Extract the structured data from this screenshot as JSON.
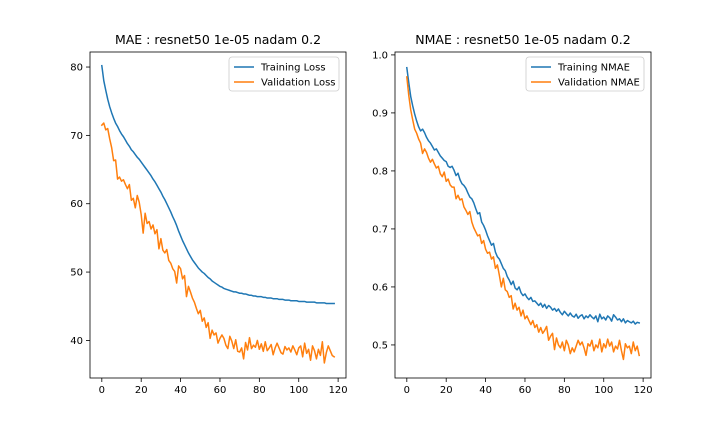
{
  "chart_data": [
    {
      "type": "line",
      "title": "MAE : resnet50 1e-05 nadam 0.2",
      "xlabel": "",
      "ylabel": "",
      "xlim": [
        -6,
        124
      ],
      "ylim": [
        34.5,
        82.2
      ],
      "xticks": [
        0,
        20,
        40,
        60,
        80,
        100,
        120
      ],
      "yticks": [
        40,
        50,
        60,
        70,
        80
      ],
      "legend": "top-right",
      "grid": false,
      "series": [
        {
          "name": "Training Loss",
          "color": "#1f77b4",
          "x": [
            0,
            1,
            2,
            3,
            4,
            5,
            6,
            7,
            8,
            9,
            10,
            11,
            12,
            13,
            14,
            15,
            16,
            17,
            18,
            19,
            20,
            21,
            22,
            23,
            24,
            25,
            26,
            27,
            28,
            29,
            30,
            31,
            32,
            33,
            34,
            35,
            36,
            37,
            38,
            39,
            40,
            41,
            42,
            43,
            44,
            45,
            46,
            47,
            48,
            49,
            50,
            51,
            52,
            53,
            54,
            55,
            56,
            57,
            58,
            59,
            60,
            61,
            62,
            63,
            64,
            65,
            66,
            67,
            68,
            69,
            70,
            71,
            72,
            73,
            74,
            75,
            76,
            77,
            78,
            79,
            80,
            81,
            82,
            83,
            84,
            85,
            86,
            87,
            88,
            89,
            90,
            91,
            92,
            93,
            94,
            95,
            96,
            97,
            98,
            99,
            100,
            101,
            102,
            103,
            104,
            105,
            106,
            107,
            108,
            109,
            110,
            111,
            112,
            113,
            114,
            115,
            116,
            117,
            118
          ],
          "values": [
            80.2,
            78.0,
            76.6,
            75.3,
            74.2,
            73.3,
            72.5,
            71.8,
            71.3,
            70.7,
            70.2,
            69.8,
            69.3,
            68.8,
            68.4,
            67.9,
            67.6,
            67.2,
            66.8,
            66.5,
            66.1,
            65.7,
            65.3,
            64.9,
            64.5,
            64.1,
            63.6,
            63.2,
            62.7,
            62.2,
            61.7,
            61.1,
            60.6,
            60.0,
            59.4,
            58.8,
            58.1,
            57.5,
            56.8,
            56.0,
            55.3,
            54.6,
            54.0,
            53.4,
            52.8,
            52.3,
            51.8,
            51.4,
            51.0,
            50.6,
            50.3,
            50.0,
            49.8,
            49.5,
            49.2,
            49.0,
            48.7,
            48.5,
            48.3,
            48.1,
            47.9,
            47.8,
            47.6,
            47.5,
            47.4,
            47.3,
            47.2,
            47.1,
            47.1,
            47.0,
            46.9,
            46.9,
            46.8,
            46.8,
            46.7,
            46.6,
            46.6,
            46.5,
            46.5,
            46.4,
            46.4,
            46.4,
            46.3,
            46.3,
            46.2,
            46.2,
            46.2,
            46.1,
            46.1,
            46.1,
            46.0,
            46.0,
            46.0,
            45.9,
            45.9,
            45.9,
            45.8,
            45.8,
            45.8,
            45.8,
            45.7,
            45.7,
            45.7,
            45.7,
            45.6,
            45.6,
            45.6,
            45.6,
            45.6,
            45.5,
            45.5,
            45.5,
            45.5,
            45.5,
            45.4,
            45.4,
            45.4,
            45.4,
            45.4
          ]
        },
        {
          "name": "Validation Loss",
          "color": "#ff7f0e",
          "x": [
            0,
            1,
            2,
            3,
            4,
            5,
            6,
            7,
            8,
            9,
            10,
            11,
            12,
            13,
            14,
            15,
            16,
            17,
            18,
            19,
            20,
            21,
            22,
            23,
            24,
            25,
            26,
            27,
            28,
            29,
            30,
            31,
            32,
            33,
            34,
            35,
            36,
            37,
            38,
            39,
            40,
            41,
            42,
            43,
            44,
            45,
            46,
            47,
            48,
            49,
            50,
            51,
            52,
            53,
            54,
            55,
            56,
            57,
            58,
            59,
            60,
            61,
            62,
            63,
            64,
            65,
            66,
            67,
            68,
            69,
            70,
            71,
            72,
            73,
            74,
            75,
            76,
            77,
            78,
            79,
            80,
            81,
            82,
            83,
            84,
            85,
            86,
            87,
            88,
            89,
            90,
            91,
            92,
            93,
            94,
            95,
            96,
            97,
            98,
            99,
            100,
            101,
            102,
            103,
            104,
            105,
            106,
            107,
            108,
            109,
            110,
            111,
            112,
            113,
            114,
            115,
            116,
            117,
            118
          ],
          "values": [
            71.5,
            71.8,
            70.8,
            71.0,
            69.5,
            68.2,
            66.3,
            66.4,
            63.6,
            63.9,
            63.3,
            63.5,
            62.8,
            62.2,
            62.8,
            60.5,
            60.8,
            59.4,
            61.2,
            60.2,
            58.4,
            55.7,
            58.6,
            57.1,
            57.4,
            56.3,
            56.9,
            55.6,
            56.2,
            53.4,
            54.9,
            53.2,
            52.8,
            53.3,
            51.7,
            51.3,
            50.5,
            50.1,
            48.4,
            50.9,
            50.5,
            49.0,
            49.5,
            46.4,
            47.9,
            47.1,
            46.2,
            45.6,
            44.7,
            43.9,
            44.4,
            42.8,
            43.3,
            41.9,
            42.6,
            40.3,
            41.5,
            40.8,
            41.1,
            39.6,
            40.3,
            40.8,
            40.3,
            39.3,
            38.8,
            40.6,
            39.9,
            38.8,
            40.1,
            38.4,
            38.3,
            38.9,
            37.3,
            39.7,
            38.6,
            40.4,
            38.8,
            39.3,
            39.0,
            40.0,
            38.7,
            39.5,
            38.4,
            39.8,
            38.5,
            38.9,
            39.4,
            37.9,
            38.9,
            39.6,
            38.9,
            38.2,
            38.0,
            39.1,
            38.6,
            38.9,
            38.3,
            39.2,
            38.6,
            37.9,
            38.9,
            39.2,
            37.6,
            39.6,
            38.1,
            38.7,
            37.1,
            39.2,
            38.5,
            37.3,
            38.7,
            37.8,
            39.8,
            36.7,
            38.2,
            39.2,
            38.5,
            37.8,
            37.6
          ]
        }
      ]
    },
    {
      "type": "line",
      "title": "NMAE : resnet50 1e-05 nadam 0.2",
      "xlabel": "",
      "ylabel": "",
      "xlim": [
        -6,
        124
      ],
      "ylim": [
        0.443,
        1.005
      ],
      "xticks": [
        0,
        20,
        40,
        60,
        80,
        100,
        120
      ],
      "yticks": [
        0.5,
        0.6,
        0.7,
        0.8,
        0.9,
        1.0
      ],
      "legend": "top-right",
      "grid": false,
      "series": [
        {
          "name": "Training NMAE",
          "color": "#1f77b4",
          "x": [
            0,
            1,
            2,
            3,
            4,
            5,
            6,
            7,
            8,
            9,
            10,
            11,
            12,
            13,
            14,
            15,
            16,
            17,
            18,
            19,
            20,
            21,
            22,
            23,
            24,
            25,
            26,
            27,
            28,
            29,
            30,
            31,
            32,
            33,
            34,
            35,
            36,
            37,
            38,
            39,
            40,
            41,
            42,
            43,
            44,
            45,
            46,
            47,
            48,
            49,
            50,
            51,
            52,
            53,
            54,
            55,
            56,
            57,
            58,
            59,
            60,
            61,
            62,
            63,
            64,
            65,
            66,
            67,
            68,
            69,
            70,
            71,
            72,
            73,
            74,
            75,
            76,
            77,
            78,
            79,
            80,
            81,
            82,
            83,
            84,
            85,
            86,
            87,
            88,
            89,
            90,
            91,
            92,
            93,
            94,
            95,
            96,
            97,
            98,
            99,
            100,
            101,
            102,
            103,
            104,
            105,
            106,
            107,
            108,
            109,
            110,
            111,
            112,
            113,
            114,
            115,
            116,
            117,
            118
          ],
          "values": [
            0.978,
            0.952,
            0.928,
            0.912,
            0.898,
            0.886,
            0.876,
            0.869,
            0.872,
            0.866,
            0.858,
            0.852,
            0.848,
            0.842,
            0.836,
            0.838,
            0.832,
            0.826,
            0.822,
            0.818,
            0.816,
            0.808,
            0.806,
            0.808,
            0.801,
            0.792,
            0.796,
            0.785,
            0.778,
            0.775,
            0.77,
            0.762,
            0.755,
            0.752,
            0.745,
            0.735,
            0.726,
            0.728,
            0.712,
            0.706,
            0.698,
            0.688,
            0.68,
            0.672,
            0.675,
            0.66,
            0.652,
            0.648,
            0.64,
            0.632,
            0.628,
            0.618,
            0.612,
            0.604,
            0.61,
            0.598,
            0.595,
            0.6,
            0.59,
            0.585,
            0.588,
            0.582,
            0.578,
            0.582,
            0.575,
            0.576,
            0.572,
            0.568,
            0.572,
            0.565,
            0.57,
            0.563,
            0.568,
            0.565,
            0.56,
            0.563,
            0.558,
            0.562,
            0.556,
            0.552,
            0.558,
            0.554,
            0.55,
            0.555,
            0.55,
            0.548,
            0.553,
            0.546,
            0.55,
            0.552,
            0.545,
            0.55,
            0.547,
            0.552,
            0.548,
            0.545,
            0.55,
            0.54,
            0.553,
            0.545,
            0.548,
            0.543,
            0.55,
            0.547,
            0.541,
            0.552,
            0.548,
            0.543,
            0.545,
            0.54,
            0.545,
            0.538,
            0.542,
            0.54,
            0.538,
            0.541,
            0.536,
            0.539,
            0.538
          ]
        },
        {
          "name": "Validation NMAE",
          "color": "#ff7f0e",
          "x": [
            0,
            1,
            2,
            3,
            4,
            5,
            6,
            7,
            8,
            9,
            10,
            11,
            12,
            13,
            14,
            15,
            16,
            17,
            18,
            19,
            20,
            21,
            22,
            23,
            24,
            25,
            26,
            27,
            28,
            29,
            30,
            31,
            32,
            33,
            34,
            35,
            36,
            37,
            38,
            39,
            40,
            41,
            42,
            43,
            44,
            45,
            46,
            47,
            48,
            49,
            50,
            51,
            52,
            53,
            54,
            55,
            56,
            57,
            58,
            59,
            60,
            61,
            62,
            63,
            64,
            65,
            66,
            67,
            68,
            69,
            70,
            71,
            72,
            73,
            74,
            75,
            76,
            77,
            78,
            79,
            80,
            81,
            82,
            83,
            84,
            85,
            86,
            87,
            88,
            89,
            90,
            91,
            92,
            93,
            94,
            95,
            96,
            97,
            98,
            99,
            100,
            101,
            102,
            103,
            104,
            105,
            106,
            107,
            108,
            109,
            110,
            111,
            112,
            113,
            114,
            115,
            116,
            117,
            118
          ],
          "values": [
            0.962,
            0.93,
            0.905,
            0.888,
            0.872,
            0.865,
            0.855,
            0.848,
            0.83,
            0.838,
            0.832,
            0.822,
            0.815,
            0.82,
            0.812,
            0.805,
            0.808,
            0.795,
            0.79,
            0.798,
            0.782,
            0.786,
            0.776,
            0.772,
            0.772,
            0.752,
            0.758,
            0.75,
            0.752,
            0.738,
            0.732,
            0.725,
            0.73,
            0.712,
            0.702,
            0.695,
            0.688,
            0.69,
            0.675,
            0.68,
            0.665,
            0.658,
            0.66,
            0.648,
            0.652,
            0.632,
            0.638,
            0.62,
            0.6,
            0.615,
            0.595,
            0.592,
            0.582,
            0.585,
            0.562,
            0.572,
            0.56,
            0.565,
            0.55,
            0.56,
            0.545,
            0.55,
            0.542,
            0.535,
            0.542,
            0.53,
            0.535,
            0.522,
            0.53,
            0.52,
            0.525,
            0.532,
            0.508,
            0.515,
            0.52,
            0.492,
            0.512,
            0.5,
            0.495,
            0.505,
            0.49,
            0.508,
            0.5,
            0.485,
            0.495,
            0.488,
            0.498,
            0.508,
            0.5,
            0.505,
            0.495,
            0.482,
            0.502,
            0.498,
            0.508,
            0.49,
            0.5,
            0.495,
            0.51,
            0.488,
            0.502,
            0.495,
            0.51,
            0.498,
            0.505,
            0.488,
            0.498,
            0.493,
            0.508,
            0.49,
            0.475,
            0.502,
            0.495,
            0.498,
            0.485,
            0.505,
            0.49,
            0.498,
            0.482
          ]
        }
      ]
    }
  ]
}
